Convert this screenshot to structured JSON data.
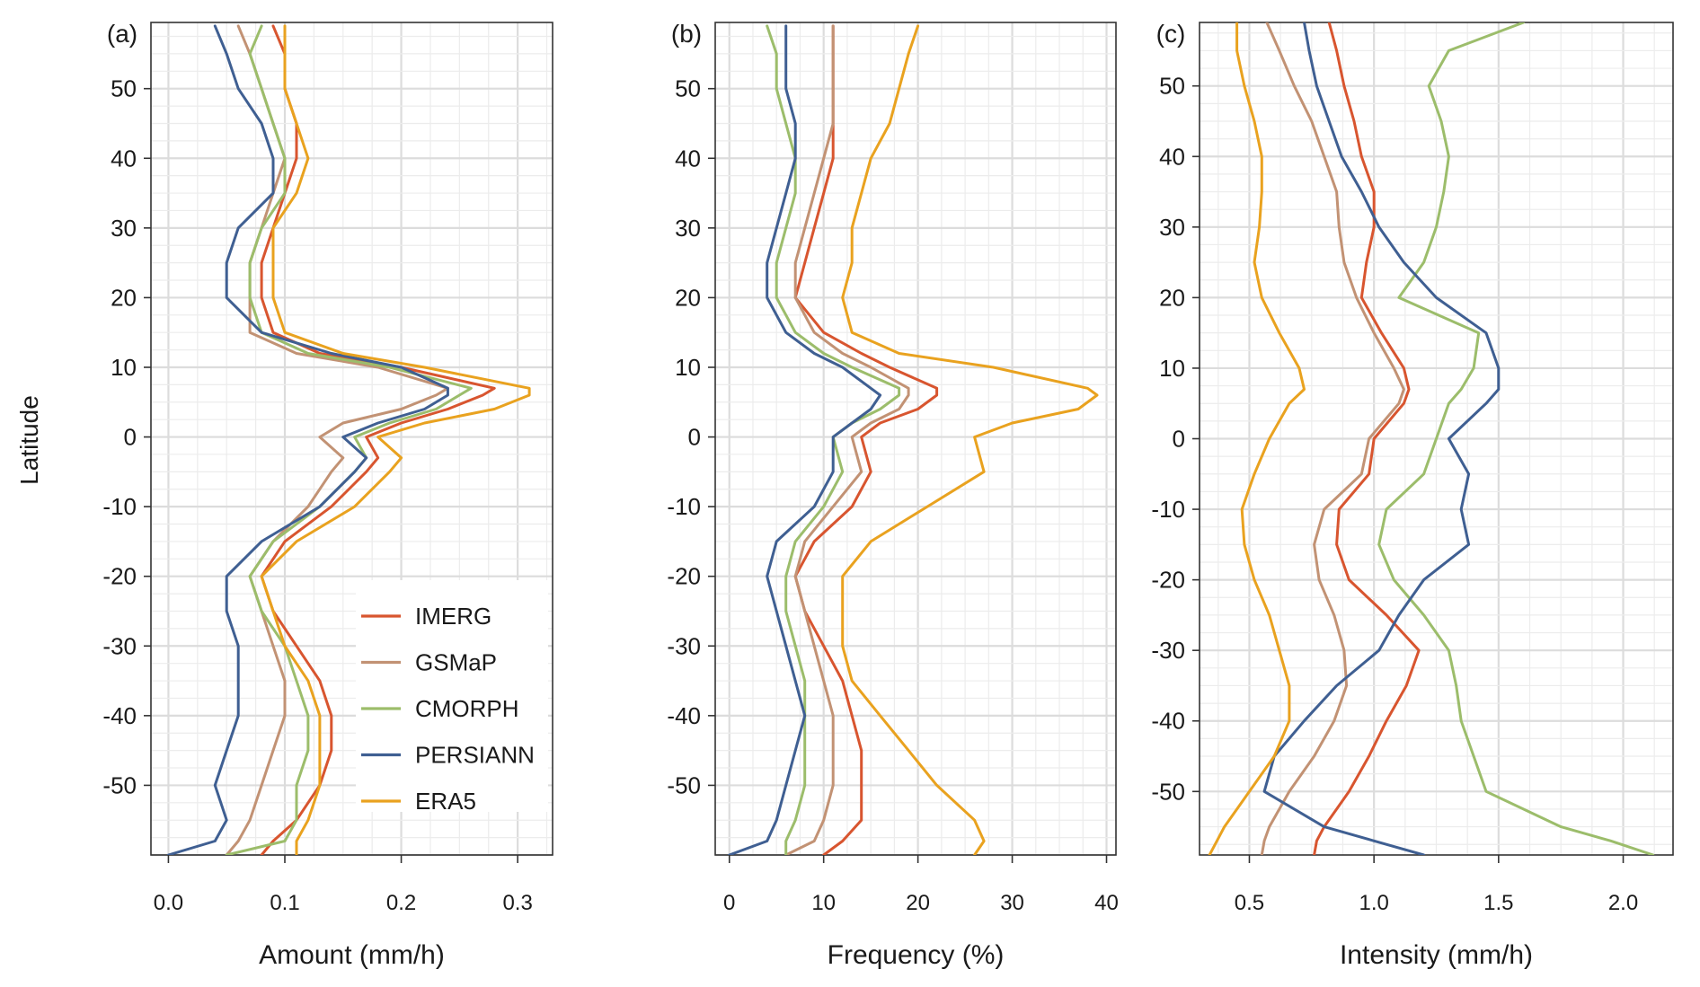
{
  "figure": {
    "ylabel": "Latitude",
    "legend_position": "bottom-right of panel (a)",
    "grid": true
  },
  "series_styles": [
    {
      "name": "IMERG",
      "color": "#d8552f"
    },
    {
      "name": "GSMaP",
      "color": "#c29274"
    },
    {
      "name": "CMORPH",
      "color": "#9cbd6b"
    },
    {
      "name": "PERSIANN",
      "color": "#3f5f92"
    },
    {
      "name": "ERA5",
      "color": "#e9a21f"
    }
  ],
  "chart_data": [
    {
      "type": "line",
      "panel_label": "(a)",
      "xlabel": "Amount (mm/h)",
      "ylabel": "Latitude",
      "xlim": [
        -0.015,
        0.33
      ],
      "ylim": [
        -60,
        59.5
      ],
      "xticks": [
        0.0,
        0.1,
        0.2,
        0.3
      ],
      "xtick_labels": [
        "0.0",
        "0.1",
        "0.2",
        "0.3"
      ],
      "yticks": [
        -50,
        -40,
        -30,
        -20,
        -10,
        0,
        10,
        20,
        30,
        40,
        50
      ],
      "ytick_labels": [
        "-50",
        "-40",
        "-30",
        "-20",
        "-10",
        "0",
        "10",
        "20",
        "30",
        "40",
        "50"
      ],
      "legend": [
        "IMERG",
        "GSMaP",
        "CMORPH",
        "PERSIANN",
        "ERA5"
      ],
      "lat": [
        -60,
        -58,
        -55,
        -50,
        -45,
        -40,
        -35,
        -30,
        -25,
        -20,
        -15,
        -10,
        -5,
        -3,
        0,
        2,
        4,
        6,
        7,
        10,
        12,
        15,
        20,
        25,
        30,
        35,
        40,
        45,
        50,
        55,
        59
      ],
      "series": [
        {
          "name": "IMERG",
          "values": [
            0.08,
            0.09,
            0.11,
            0.13,
            0.14,
            0.14,
            0.13,
            0.11,
            0.09,
            0.08,
            0.1,
            0.14,
            0.17,
            0.18,
            0.17,
            0.2,
            0.24,
            0.27,
            0.28,
            0.2,
            0.13,
            0.09,
            0.08,
            0.08,
            0.09,
            0.1,
            0.11,
            0.11,
            0.1,
            0.1,
            0.09
          ]
        },
        {
          "name": "GSMaP",
          "values": [
            0.05,
            0.06,
            0.07,
            0.08,
            0.09,
            0.1,
            0.1,
            0.09,
            0.08,
            0.07,
            0.09,
            0.12,
            0.14,
            0.15,
            0.13,
            0.15,
            0.2,
            0.23,
            0.24,
            0.18,
            0.11,
            0.07,
            0.07,
            0.07,
            0.08,
            0.09,
            0.1,
            0.09,
            0.08,
            0.07,
            0.06
          ]
        },
        {
          "name": "CMORPH",
          "values": [
            0.05,
            0.1,
            0.11,
            0.11,
            0.12,
            0.12,
            0.11,
            0.1,
            0.08,
            0.07,
            0.09,
            0.13,
            0.16,
            0.17,
            0.16,
            0.19,
            0.23,
            0.25,
            0.26,
            0.19,
            0.12,
            0.08,
            0.07,
            0.07,
            0.08,
            0.1,
            0.1,
            0.09,
            0.08,
            0.07,
            0.08
          ]
        },
        {
          "name": "PERSIANN",
          "values": [
            0.0,
            0.04,
            0.05,
            0.04,
            0.05,
            0.06,
            0.06,
            0.06,
            0.05,
            0.05,
            0.08,
            0.13,
            0.16,
            0.17,
            0.15,
            0.18,
            0.22,
            0.24,
            0.24,
            0.2,
            0.14,
            0.08,
            0.05,
            0.05,
            0.06,
            0.09,
            0.09,
            0.08,
            0.06,
            0.05,
            0.04
          ]
        },
        {
          "name": "ERA5",
          "values": [
            0.11,
            0.11,
            0.12,
            0.13,
            0.13,
            0.13,
            0.12,
            0.1,
            0.09,
            0.08,
            0.11,
            0.16,
            0.19,
            0.2,
            0.18,
            0.22,
            0.28,
            0.31,
            0.31,
            0.22,
            0.15,
            0.1,
            0.09,
            0.09,
            0.09,
            0.11,
            0.12,
            0.11,
            0.1,
            0.1,
            0.1
          ]
        }
      ]
    },
    {
      "type": "line",
      "panel_label": "(b)",
      "xlabel": "Frequency (%)",
      "ylabel": "Latitude",
      "xlim": [
        -1.5,
        41
      ],
      "ylim": [
        -60,
        59.5
      ],
      "xticks": [
        0,
        10,
        20,
        30,
        40
      ],
      "xtick_labels": [
        "0",
        "10",
        "20",
        "30",
        "40"
      ],
      "yticks": [
        -50,
        -40,
        -30,
        -20,
        -10,
        0,
        10,
        20,
        30,
        40,
        50
      ],
      "ytick_labels": [
        "-50",
        "-40",
        "-30",
        "-20",
        "-10",
        "0",
        "10",
        "20",
        "30",
        "40",
        "50"
      ],
      "lat": [
        -60,
        -58,
        -55,
        -50,
        -45,
        -40,
        -35,
        -30,
        -25,
        -20,
        -15,
        -10,
        -5,
        0,
        2,
        4,
        6,
        7,
        10,
        12,
        15,
        20,
        25,
        30,
        35,
        40,
        45,
        50,
        55,
        59
      ],
      "series": [
        {
          "name": "IMERG",
          "values": [
            10,
            12,
            14,
            14,
            14,
            13,
            12,
            10,
            8,
            7,
            9,
            13,
            15,
            14,
            16,
            20,
            22,
            22,
            17,
            14,
            10,
            7,
            8,
            9,
            10,
            11,
            11,
            11,
            11,
            11
          ]
        },
        {
          "name": "GSMaP",
          "values": [
            6,
            9,
            10,
            11,
            11,
            11,
            10,
            9,
            8,
            7,
            8,
            11,
            14,
            13,
            15,
            18,
            19,
            19,
            15,
            12,
            9,
            7,
            7,
            8,
            9,
            10,
            11,
            11,
            11,
            11
          ]
        },
        {
          "name": "CMORPH",
          "values": [
            6,
            6,
            7,
            8,
            8,
            8,
            8,
            7,
            6,
            6,
            7,
            10,
            12,
            11,
            13,
            16,
            18,
            18,
            13,
            10,
            7,
            5,
            5,
            6,
            7,
            7,
            6,
            5,
            5,
            4
          ]
        },
        {
          "name": "PERSIANN",
          "values": [
            0,
            4,
            5,
            6,
            7,
            8,
            7,
            6,
            5,
            4,
            5,
            9,
            11,
            11,
            13,
            15,
            16,
            15,
            12,
            9,
            6,
            4,
            4,
            5,
            6,
            7,
            7,
            6,
            6,
            6
          ]
        },
        {
          "name": "ERA5",
          "values": [
            26,
            27,
            26,
            22,
            19,
            16,
            13,
            12,
            12,
            12,
            15,
            21,
            27,
            26,
            30,
            37,
            39,
            38,
            28,
            18,
            13,
            12,
            13,
            13,
            14,
            15,
            17,
            18,
            19,
            20
          ]
        }
      ]
    },
    {
      "type": "line",
      "panel_label": "(c)",
      "xlabel": "Intensity (mm/h)",
      "ylabel": "Latitude",
      "xlim": [
        0.3,
        2.2
      ],
      "ylim": [
        -59,
        59
      ],
      "xticks": [
        0.5,
        1.0,
        1.5,
        2.0
      ],
      "xtick_labels": [
        "0.5",
        "1.0",
        "1.5",
        "2.0"
      ],
      "yticks": [
        -50,
        -40,
        -30,
        -20,
        -10,
        0,
        10,
        20,
        30,
        40,
        50
      ],
      "ytick_labels": [
        "-50",
        "-40",
        "-30",
        "-20",
        "-10",
        "0",
        "10",
        "20",
        "30",
        "40",
        "50"
      ],
      "lat": [
        -59,
        -57,
        -55,
        -50,
        -45,
        -40,
        -35,
        -30,
        -25,
        -20,
        -15,
        -10,
        -5,
        0,
        5,
        7,
        10,
        15,
        20,
        25,
        30,
        35,
        40,
        45,
        50,
        55,
        59
      ],
      "series": [
        {
          "name": "IMERG",
          "values": [
            0.76,
            0.77,
            0.8,
            0.9,
            0.98,
            1.05,
            1.13,
            1.18,
            1.05,
            0.9,
            0.85,
            0.86,
            0.98,
            1.0,
            1.12,
            1.14,
            1.12,
            1.03,
            0.95,
            0.97,
            1.0,
            1.0,
            0.95,
            0.92,
            0.88,
            0.85,
            0.82
          ]
        },
        {
          "name": "GSMaP",
          "values": [
            0.55,
            0.56,
            0.58,
            0.66,
            0.76,
            0.84,
            0.89,
            0.88,
            0.84,
            0.78,
            0.76,
            0.8,
            0.95,
            0.98,
            1.1,
            1.12,
            1.08,
            1.0,
            0.93,
            0.88,
            0.86,
            0.85,
            0.8,
            0.75,
            0.68,
            0.62,
            0.57
          ]
        },
        {
          "name": "CMORPH",
          "values": [
            2.12,
            1.95,
            1.75,
            1.45,
            1.4,
            1.35,
            1.33,
            1.3,
            1.2,
            1.08,
            1.02,
            1.05,
            1.2,
            1.25,
            1.3,
            1.35,
            1.4,
            1.42,
            1.1,
            1.2,
            1.25,
            1.28,
            1.3,
            1.27,
            1.22,
            1.3,
            1.6
          ]
        },
        {
          "name": "PERSIANN",
          "values": [
            1.2,
            1.0,
            0.8,
            0.56,
            0.6,
            0.72,
            0.85,
            1.02,
            1.1,
            1.2,
            1.38,
            1.35,
            1.38,
            1.3,
            1.45,
            1.5,
            1.5,
            1.45,
            1.25,
            1.12,
            1.02,
            0.95,
            0.87,
            0.82,
            0.77,
            0.74,
            0.72
          ]
        },
        {
          "name": "ERA5",
          "values": [
            0.34,
            0.37,
            0.4,
            0.5,
            0.6,
            0.66,
            0.66,
            0.62,
            0.58,
            0.52,
            0.48,
            0.47,
            0.52,
            0.58,
            0.66,
            0.72,
            0.7,
            0.62,
            0.55,
            0.52,
            0.54,
            0.55,
            0.55,
            0.52,
            0.48,
            0.45,
            0.45
          ]
        }
      ]
    }
  ]
}
